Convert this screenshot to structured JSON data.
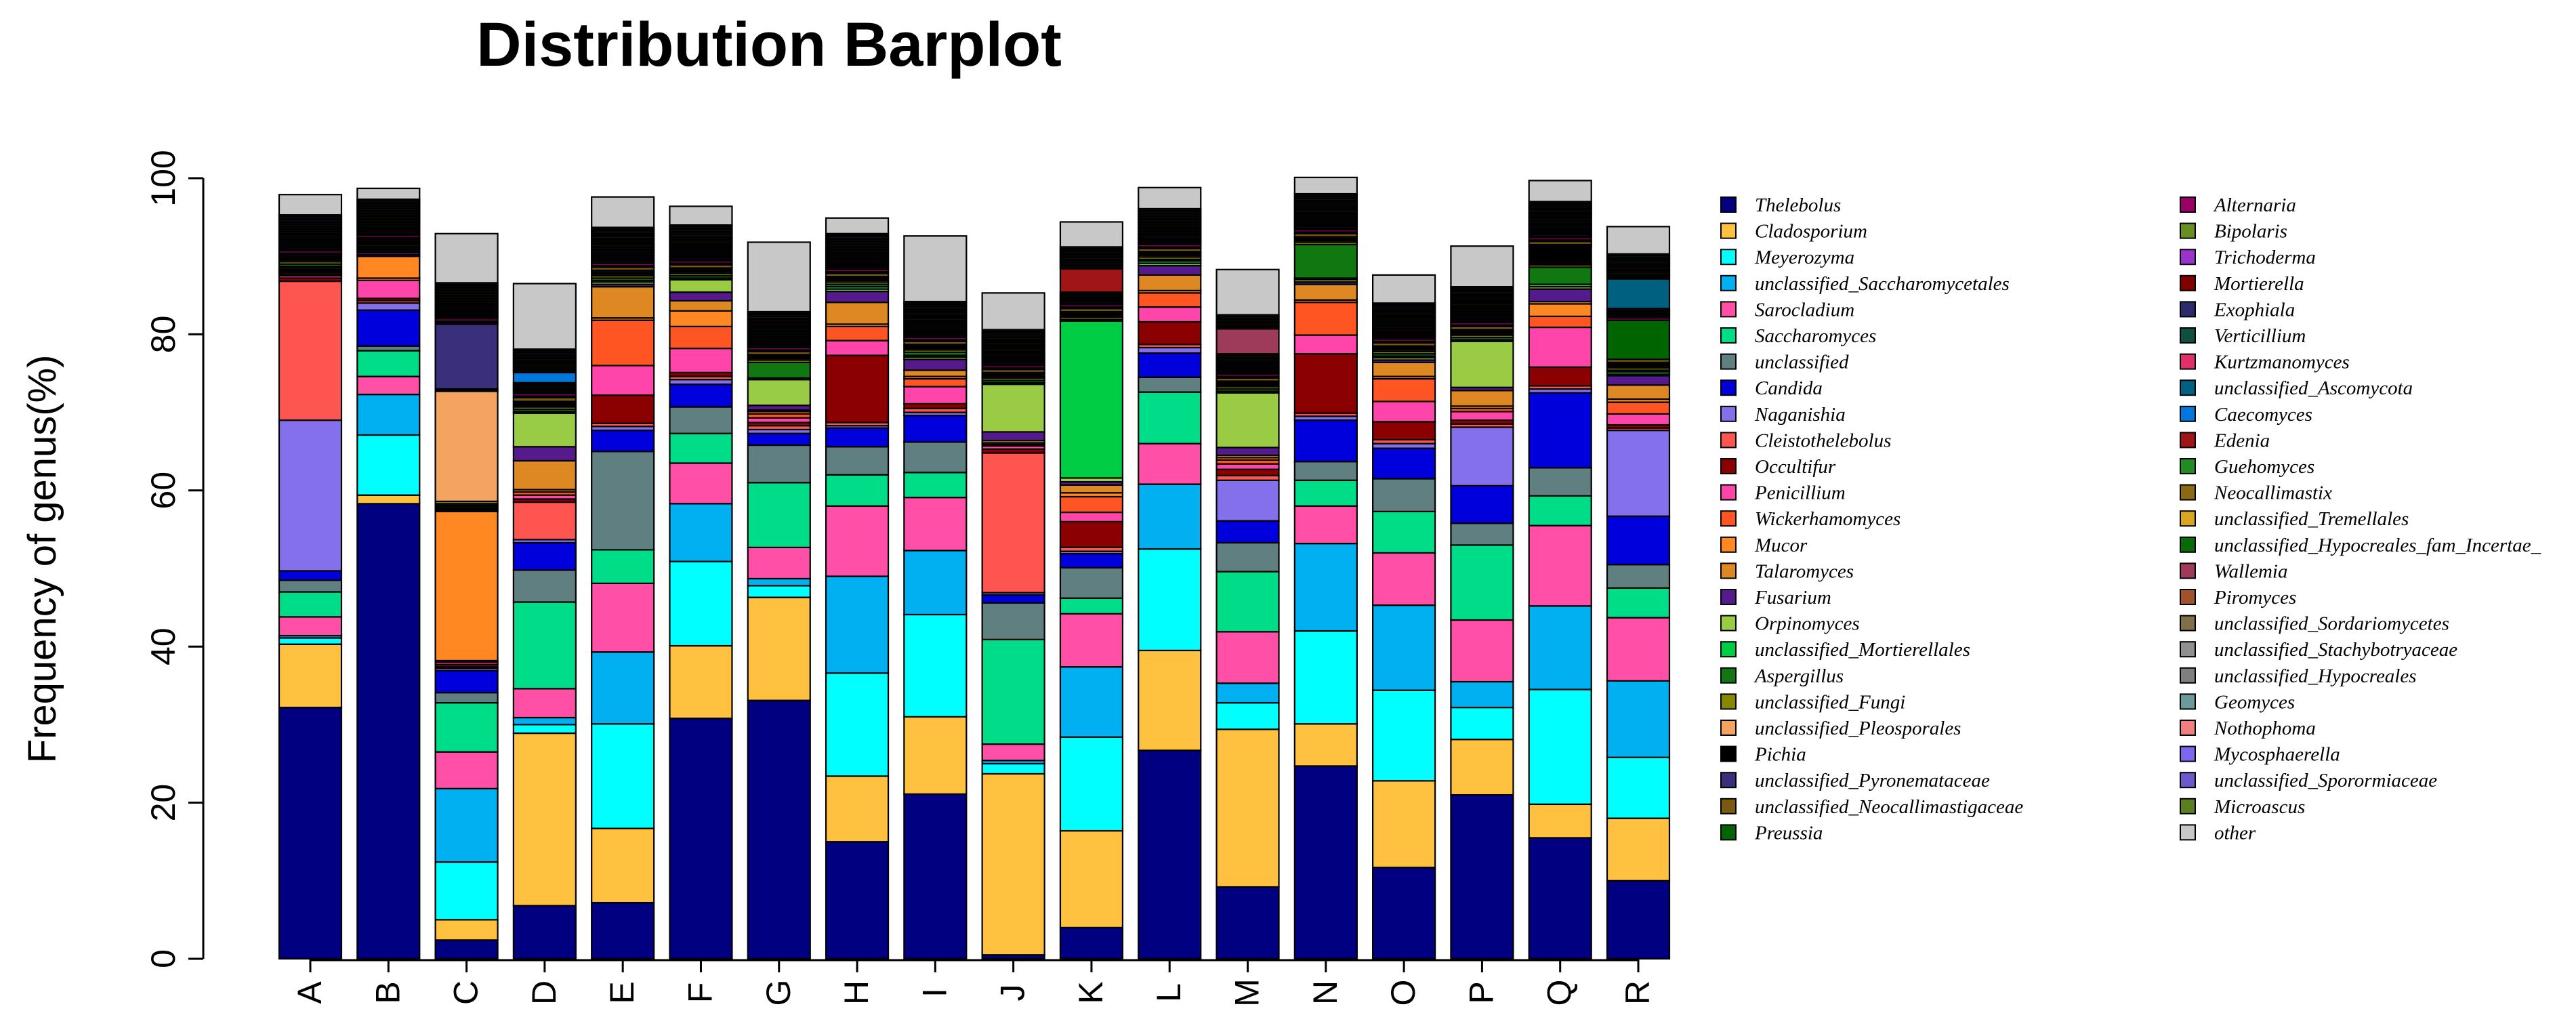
{
  "chart_data": {
    "type": "bar",
    "stacked": true,
    "title": "Distribution Barplot",
    "xlabel": "",
    "ylabel": "Frequency of genus(%)",
    "ylim": [
      0,
      100
    ],
    "yticks": [
      "0",
      "20",
      "40",
      "60",
      "80",
      "100"
    ],
    "categories": [
      "A",
      "B",
      "C",
      "D",
      "E",
      "F",
      "G",
      "H",
      "I",
      "J",
      "K",
      "L",
      "M",
      "N",
      "O",
      "P",
      "Q",
      "R"
    ],
    "legend_position": "right",
    "series": [
      {
        "name": "Thelebolus",
        "color": "#000080",
        "values": [
          32.2,
          58.3,
          2.4,
          6.8,
          7.2,
          30.8,
          33.1,
          15.0,
          21.1,
          0.5,
          4.0,
          26.7,
          9.2,
          24.7,
          11.7,
          21.0,
          15.5,
          10.0
        ]
      },
      {
        "name": "Cladosporium",
        "color": "#FFC13F",
        "values": [
          8.1,
          1.1,
          2.6,
          22.1,
          9.5,
          9.3,
          13.2,
          8.4,
          9.9,
          23.2,
          12.4,
          12.8,
          20.2,
          5.4,
          11.1,
          7.1,
          4.3,
          8.0
        ]
      },
      {
        "name": "Meyerozyma",
        "color": "#00FFFF",
        "values": [
          0.8,
          7.7,
          7.4,
          1.1,
          13.4,
          10.8,
          1.5,
          13.2,
          13.1,
          1.3,
          12.0,
          13.0,
          3.4,
          11.9,
          11.6,
          4.1,
          14.7,
          7.8
        ]
      },
      {
        "name": "unclassified_Saccharomycetales",
        "color": "#00B0F0",
        "values": [
          0.3,
          5.2,
          9.4,
          0.9,
          9.2,
          7.4,
          0.9,
          12.4,
          8.2,
          0.4,
          9.0,
          8.3,
          2.5,
          11.2,
          10.9,
          3.3,
          10.7,
          9.8
        ]
      },
      {
        "name": "Sarocladium",
        "color": "#FF4FA7",
        "values": [
          2.4,
          2.3,
          4.7,
          3.7,
          8.8,
          5.2,
          4.0,
          9.0,
          6.8,
          2.1,
          6.8,
          5.2,
          6.6,
          4.8,
          6.7,
          7.9,
          10.3,
          8.1
        ]
      },
      {
        "name": "Saccharomyces",
        "color": "#00DD88",
        "values": [
          3.2,
          3.3,
          6.3,
          11.1,
          4.3,
          3.8,
          8.3,
          4.0,
          3.2,
          13.4,
          2.0,
          6.6,
          7.7,
          3.3,
          5.3,
          9.6,
          3.8,
          3.8
        ]
      },
      {
        "name": "unclassified",
        "color": "#5F7F80",
        "values": [
          1.5,
          0.6,
          1.3,
          4.1,
          12.6,
          3.4,
          4.8,
          3.6,
          3.9,
          4.7,
          3.9,
          1.9,
          3.7,
          2.4,
          4.2,
          2.8,
          3.6,
          3.0
        ]
      },
      {
        "name": "Candida",
        "color": "#0000DD",
        "values": [
          1.2,
          4.6,
          2.8,
          3.5,
          2.7,
          2.9,
          1.5,
          2.4,
          3.4,
          1.0,
          1.8,
          3.1,
          2.8,
          5.3,
          3.9,
          4.8,
          9.6,
          6.2
        ]
      },
      {
        "name": "Naganishia",
        "color": "#8470EA",
        "values": [
          19.3,
          0.9,
          0.3,
          0.4,
          0.5,
          0.6,
          0.5,
          0.3,
          0.4,
          0.3,
          0.3,
          0.7,
          5.2,
          0.5,
          0.6,
          7.5,
          0.5,
          11.0
        ]
      },
      {
        "name": "Cleistothelebolus",
        "color": "#FF5550",
        "values": [
          17.8,
          0.3,
          0.2,
          4.8,
          0.4,
          0.4,
          0.5,
          0.4,
          0.5,
          17.9,
          0.5,
          0.4,
          0.6,
          0.4,
          0.5,
          0.4,
          0.4,
          0.3
        ]
      },
      {
        "name": "Occultifur",
        "color": "#8B0000",
        "values": [
          0.4,
          0.3,
          0.3,
          0.4,
          3.6,
          0.5,
          0.4,
          8.6,
          0.6,
          0.5,
          3.3,
          2.9,
          0.8,
          7.6,
          2.3,
          0.5,
          2.4,
          0.4
        ]
      },
      {
        "name": "Penicillium",
        "color": "#FF44AA",
        "values": [
          0.3,
          2.3,
          0.3,
          0.5,
          3.8,
          3.1,
          0.6,
          1.9,
          2.2,
          0.4,
          1.2,
          1.9,
          0.7,
          2.4,
          2.6,
          1.1,
          5.1,
          1.4
        ]
      },
      {
        "name": "Wickerhamomyces",
        "color": "#FF5522",
        "values": [
          0.2,
          0.3,
          0.2,
          0.4,
          5.8,
          2.8,
          0.5,
          1.8,
          1.0,
          0.2,
          2.0,
          1.8,
          0.5,
          4.2,
          2.9,
          0.4,
          1.4,
          1.5
        ]
      },
      {
        "name": "Mucor",
        "color": "#FF8822",
        "values": [
          0.2,
          2.8,
          19.1,
          0.3,
          0.3,
          2.0,
          0.3,
          0.3,
          0.3,
          0.2,
          0.5,
          0.3,
          0.3,
          0.3,
          0.3,
          0.3,
          1.6,
          0.4
        ]
      },
      {
        "name": "Talaromyces",
        "color": "#DD8822",
        "values": [
          0.2,
          0.2,
          0.2,
          3.7,
          4.0,
          1.3,
          0.2,
          2.8,
          0.8,
          0.3,
          1.0,
          2.0,
          0.3,
          2.0,
          1.8,
          2.0,
          0.3,
          1.8
        ]
      },
      {
        "name": "Fusarium",
        "color": "#551A8B",
        "values": [
          0.2,
          0.3,
          0.2,
          1.8,
          0.3,
          1.1,
          0.6,
          1.4,
          1.4,
          1.1,
          0.4,
          1.2,
          1.0,
          0.3,
          0.3,
          0.4,
          1.6,
          1.2
        ]
      },
      {
        "name": "Orpinomyces",
        "color": "#99CC44",
        "values": [
          0.2,
          0.2,
          0.2,
          4.3,
          0.3,
          1.6,
          3.3,
          0.3,
          0.3,
          6.1,
          0.5,
          0.3,
          7.0,
          0.3,
          0.3,
          5.9,
          0.3,
          0.2
        ]
      },
      {
        "name": "unclassified_Mortierellales",
        "color": "#00CC44",
        "values": [
          0.2,
          0.2,
          0.2,
          0.2,
          0.2,
          0.2,
          0.2,
          0.3,
          0.2,
          0.2,
          20.1,
          0.3,
          0.2,
          0.2,
          0.2,
          0.2,
          0.3,
          0.3
        ]
      },
      {
        "name": "Aspergillus",
        "color": "#117711",
        "values": [
          0.3,
          0.2,
          0.2,
          0.3,
          0.3,
          0.3,
          2.0,
          0.3,
          0.4,
          0.3,
          0.2,
          0.2,
          0.3,
          4.3,
          0.3,
          0.3,
          2.2,
          0.2
        ]
      },
      {
        "name": "unclassified_Fungi",
        "color": "#888800",
        "values": [
          0.3,
          0.2,
          0.3,
          0.3,
          0.3,
          0.3,
          0.3,
          0.3,
          0.3,
          0.3,
          0.3,
          0.3,
          0.3,
          0.3,
          0.3,
          0.3,
          0.3,
          0.3
        ]
      },
      {
        "name": "unclassified_Pleosporales",
        "color": "#F4A460",
        "values": [
          0.2,
          0.2,
          14.1,
          0.2,
          0.2,
          0.2,
          0.2,
          0.2,
          0.2,
          0.2,
          0.2,
          0.2,
          0.2,
          0.2,
          0.2,
          0.2,
          0.2,
          0.2
        ]
      },
      {
        "name": "Pichia",
        "color": "#000000",
        "values": [
          0.3,
          0.3,
          0.3,
          0.3,
          0.3,
          0.3,
          0.3,
          0.3,
          0.3,
          0.3,
          0.3,
          0.3,
          0.3,
          0.3,
          0.3,
          0.3,
          2.2,
          0.3
        ]
      },
      {
        "name": "unclassified_Pyronemataceae",
        "color": "#3A2F7A",
        "values": [
          0.2,
          0.2,
          8.3,
          0.2,
          0.2,
          0.2,
          0.2,
          0.2,
          0.2,
          0.2,
          0.2,
          0.2,
          0.2,
          0.2,
          0.2,
          0.2,
          0.2,
          0.2
        ]
      },
      {
        "name": "unclassified_Neocallimastigaceae",
        "color": "#7A5A10",
        "values": [
          0.2,
          0.2,
          0.2,
          0.5,
          0.4,
          0.4,
          0.4,
          0.4,
          0.4,
          0.4,
          0.4,
          0.4,
          0.4,
          0.4,
          0.4,
          0.4,
          0.4,
          0.4
        ]
      },
      {
        "name": "Preussia",
        "color": "#006400",
        "values": [
          0.2,
          0.2,
          0.2,
          0.2,
          0.2,
          0.2,
          0.2,
          0.2,
          0.2,
          0.2,
          0.2,
          0.2,
          0.2,
          0.2,
          0.2,
          0.2,
          0.2,
          5.0
        ]
      },
      {
        "name": "Alternaria",
        "color": "#990066",
        "values": [
          0.3,
          0.3,
          0.3,
          0.3,
          0.3,
          0.3,
          0.3,
          0.3,
          0.3,
          0.3,
          0.3,
          0.3,
          0.3,
          0.3,
          0.3,
          0.3,
          0.3,
          0.3
        ]
      },
      {
        "name": "Bipolaris",
        "color": "#6B8E23",
        "values": [
          0.2,
          0.2,
          0.2,
          0.2,
          0.2,
          0.2,
          0.2,
          0.2,
          0.2,
          0.2,
          0.2,
          0.2,
          0.2,
          0.2,
          0.2,
          0.2,
          0.2,
          0.2
        ]
      },
      {
        "name": "Trichoderma",
        "color": "#9933CC",
        "values": [
          0.2,
          0.2,
          0.2,
          0.2,
          0.2,
          0.2,
          0.2,
          0.2,
          0.2,
          0.2,
          0.2,
          0.2,
          0.2,
          0.2,
          0.2,
          0.2,
          0.2,
          0.2
        ]
      },
      {
        "name": "Mortierella",
        "color": "#800000",
        "values": [
          0.2,
          0.2,
          0.2,
          0.2,
          0.2,
          0.2,
          0.2,
          0.2,
          0.2,
          0.2,
          0.2,
          0.2,
          0.2,
          0.2,
          0.2,
          0.2,
          0.2,
          0.2
        ]
      },
      {
        "name": "Exophiala",
        "color": "#2B2B6B",
        "values": [
          0.2,
          0.2,
          0.2,
          0.2,
          0.2,
          0.2,
          0.2,
          0.2,
          0.2,
          0.2,
          0.2,
          0.2,
          0.2,
          0.2,
          0.2,
          0.2,
          0.2,
          0.2
        ]
      },
      {
        "name": "Verticillium",
        "color": "#0F4F3F",
        "values": [
          0.2,
          0.2,
          0.2,
          0.2,
          0.2,
          0.2,
          0.2,
          0.2,
          0.2,
          0.2,
          0.2,
          0.2,
          0.2,
          0.2,
          0.2,
          0.2,
          0.2,
          0.2
        ]
      },
      {
        "name": "Kurtzmanomyces",
        "color": "#E0306A",
        "values": [
          0.2,
          0.2,
          0.2,
          0.2,
          0.2,
          0.2,
          0.2,
          0.2,
          0.2,
          0.2,
          0.2,
          0.2,
          0.2,
          0.2,
          0.2,
          0.2,
          0.2,
          0.2
        ]
      },
      {
        "name": "unclassified_Ascomycota",
        "color": "#006080",
        "values": [
          0.2,
          0.2,
          0.2,
          0.2,
          0.2,
          0.2,
          0.2,
          0.2,
          0.2,
          0.2,
          0.2,
          0.2,
          0.2,
          0.2,
          0.2,
          0.2,
          0.2,
          3.8
        ]
      },
      {
        "name": "Caecomyces",
        "color": "#0077DD",
        "values": [
          0.2,
          0.2,
          0.2,
          1.3,
          0.2,
          0.2,
          0.2,
          0.2,
          0.2,
          0.2,
          0.2,
          0.2,
          0.2,
          0.2,
          0.2,
          0.2,
          0.2,
          0.2
        ]
      },
      {
        "name": "Edenia",
        "color": "#A01515",
        "values": [
          0.2,
          0.2,
          0.2,
          0.2,
          0.2,
          0.2,
          0.2,
          0.2,
          0.2,
          0.2,
          3.0,
          0.2,
          0.2,
          0.2,
          0.2,
          0.2,
          0.2,
          0.2
        ]
      },
      {
        "name": "Guehomyces",
        "color": "#228B22",
        "values": [
          0.2,
          0.2,
          0.2,
          0.2,
          0.2,
          0.2,
          0.2,
          0.2,
          0.2,
          0.2,
          0.2,
          0.2,
          0.2,
          0.2,
          0.2,
          0.2,
          0.2,
          0.2
        ]
      },
      {
        "name": "Neocallimastix",
        "color": "#8B6914",
        "values": [
          0.2,
          0.2,
          0.2,
          0.2,
          0.2,
          0.2,
          0.2,
          0.2,
          0.2,
          0.2,
          0.2,
          0.2,
          0.2,
          0.2,
          0.2,
          0.2,
          0.2,
          0.2
        ]
      },
      {
        "name": "unclassified_Tremellales",
        "color": "#DAA520",
        "values": [
          0.2,
          0.2,
          0.2,
          0.2,
          0.2,
          0.2,
          0.2,
          0.2,
          0.2,
          0.2,
          0.2,
          0.2,
          0.2,
          0.2,
          0.2,
          0.2,
          0.2,
          0.2
        ]
      },
      {
        "name": "unclassified_Hypocreales_fam_Incertae_",
        "color": "#0A6A0A",
        "values": [
          0.2,
          0.2,
          0.2,
          0.2,
          0.2,
          0.2,
          0.2,
          0.2,
          0.2,
          0.2,
          0.2,
          0.2,
          0.2,
          0.2,
          0.2,
          0.2,
          0.2,
          0.2
        ]
      },
      {
        "name": "Wallemia",
        "color": "#9E3B5A",
        "values": [
          0.2,
          0.2,
          0.2,
          0.2,
          0.2,
          0.2,
          0.2,
          0.2,
          0.2,
          0.2,
          0.2,
          0.2,
          3.2,
          0.2,
          0.2,
          0.2,
          0.2,
          0.2
        ]
      },
      {
        "name": "Piromyces",
        "color": "#A0522D",
        "values": [
          0.2,
          0.2,
          0.2,
          0.2,
          0.2,
          0.2,
          0.2,
          0.2,
          0.2,
          0.2,
          0.2,
          0.2,
          0.2,
          0.2,
          0.2,
          0.2,
          0.2,
          0.2
        ]
      },
      {
        "name": "unclassified_Sordariomycetes",
        "color": "#80704A",
        "values": [
          0.2,
          0.2,
          0.2,
          0.2,
          0.2,
          0.2,
          0.2,
          0.2,
          0.2,
          0.2,
          0.2,
          0.2,
          0.2,
          0.2,
          0.2,
          0.2,
          0.2,
          0.2
        ]
      },
      {
        "name": "unclassified_Stachybotryaceae",
        "color": "#909090",
        "values": [
          0.2,
          0.2,
          0.2,
          0.2,
          0.2,
          0.2,
          0.2,
          0.2,
          0.2,
          0.2,
          0.2,
          0.2,
          0.2,
          0.2,
          0.2,
          0.2,
          0.2,
          0.2
        ]
      },
      {
        "name": "unclassified_Hypocreales",
        "color": "#7F7F7F",
        "values": [
          0.2,
          0.2,
          0.2,
          0.2,
          0.2,
          0.2,
          0.2,
          0.2,
          0.2,
          0.2,
          0.2,
          0.2,
          0.2,
          0.2,
          0.2,
          0.2,
          0.2,
          0.2
        ]
      },
      {
        "name": "Geomyces",
        "color": "#6A9A9A",
        "values": [
          0.2,
          0.2,
          0.2,
          0.2,
          0.2,
          0.2,
          0.2,
          0.2,
          0.2,
          0.2,
          0.2,
          0.2,
          0.2,
          0.2,
          0.2,
          0.2,
          0.2,
          0.2
        ]
      },
      {
        "name": "Nothophoma",
        "color": "#F08080",
        "values": [
          0.2,
          0.2,
          0.2,
          0.2,
          0.2,
          0.2,
          0.2,
          0.2,
          0.2,
          0.2,
          0.2,
          0.2,
          0.2,
          0.2,
          0.2,
          0.2,
          0.2,
          0.2
        ]
      },
      {
        "name": "Mycosphaerella",
        "color": "#7B68EE",
        "values": [
          0.2,
          0.2,
          0.2,
          0.2,
          0.2,
          0.2,
          0.2,
          0.2,
          0.2,
          0.2,
          0.2,
          0.2,
          0.2,
          0.2,
          0.2,
          0.2,
          0.2,
          0.2
        ]
      },
      {
        "name": "unclassified_Sporormiaceae",
        "color": "#6A5ACD",
        "values": [
          0.2,
          0.2,
          0.2,
          0.2,
          0.2,
          0.2,
          0.2,
          0.2,
          0.2,
          0.2,
          0.2,
          0.2,
          0.2,
          0.2,
          0.2,
          0.2,
          0.2,
          0.2
        ]
      },
      {
        "name": "Microascus",
        "color": "#5B7F1E",
        "values": [
          0.2,
          0.2,
          0.2,
          0.2,
          0.2,
          0.2,
          0.2,
          0.2,
          0.2,
          0.2,
          0.2,
          0.2,
          0.2,
          0.2,
          0.2,
          0.2,
          0.2,
          0.2
        ]
      },
      {
        "name": "other",
        "color": "#C8C8C8",
        "values": [
          2.6,
          1.4,
          6.3,
          8.4,
          3.9,
          2.4,
          8.9,
          2.0,
          8.4,
          4.7,
          3.2,
          2.7,
          5.8,
          2.1,
          3.6,
          5.2,
          2.7,
          3.5
        ]
      }
    ]
  }
}
